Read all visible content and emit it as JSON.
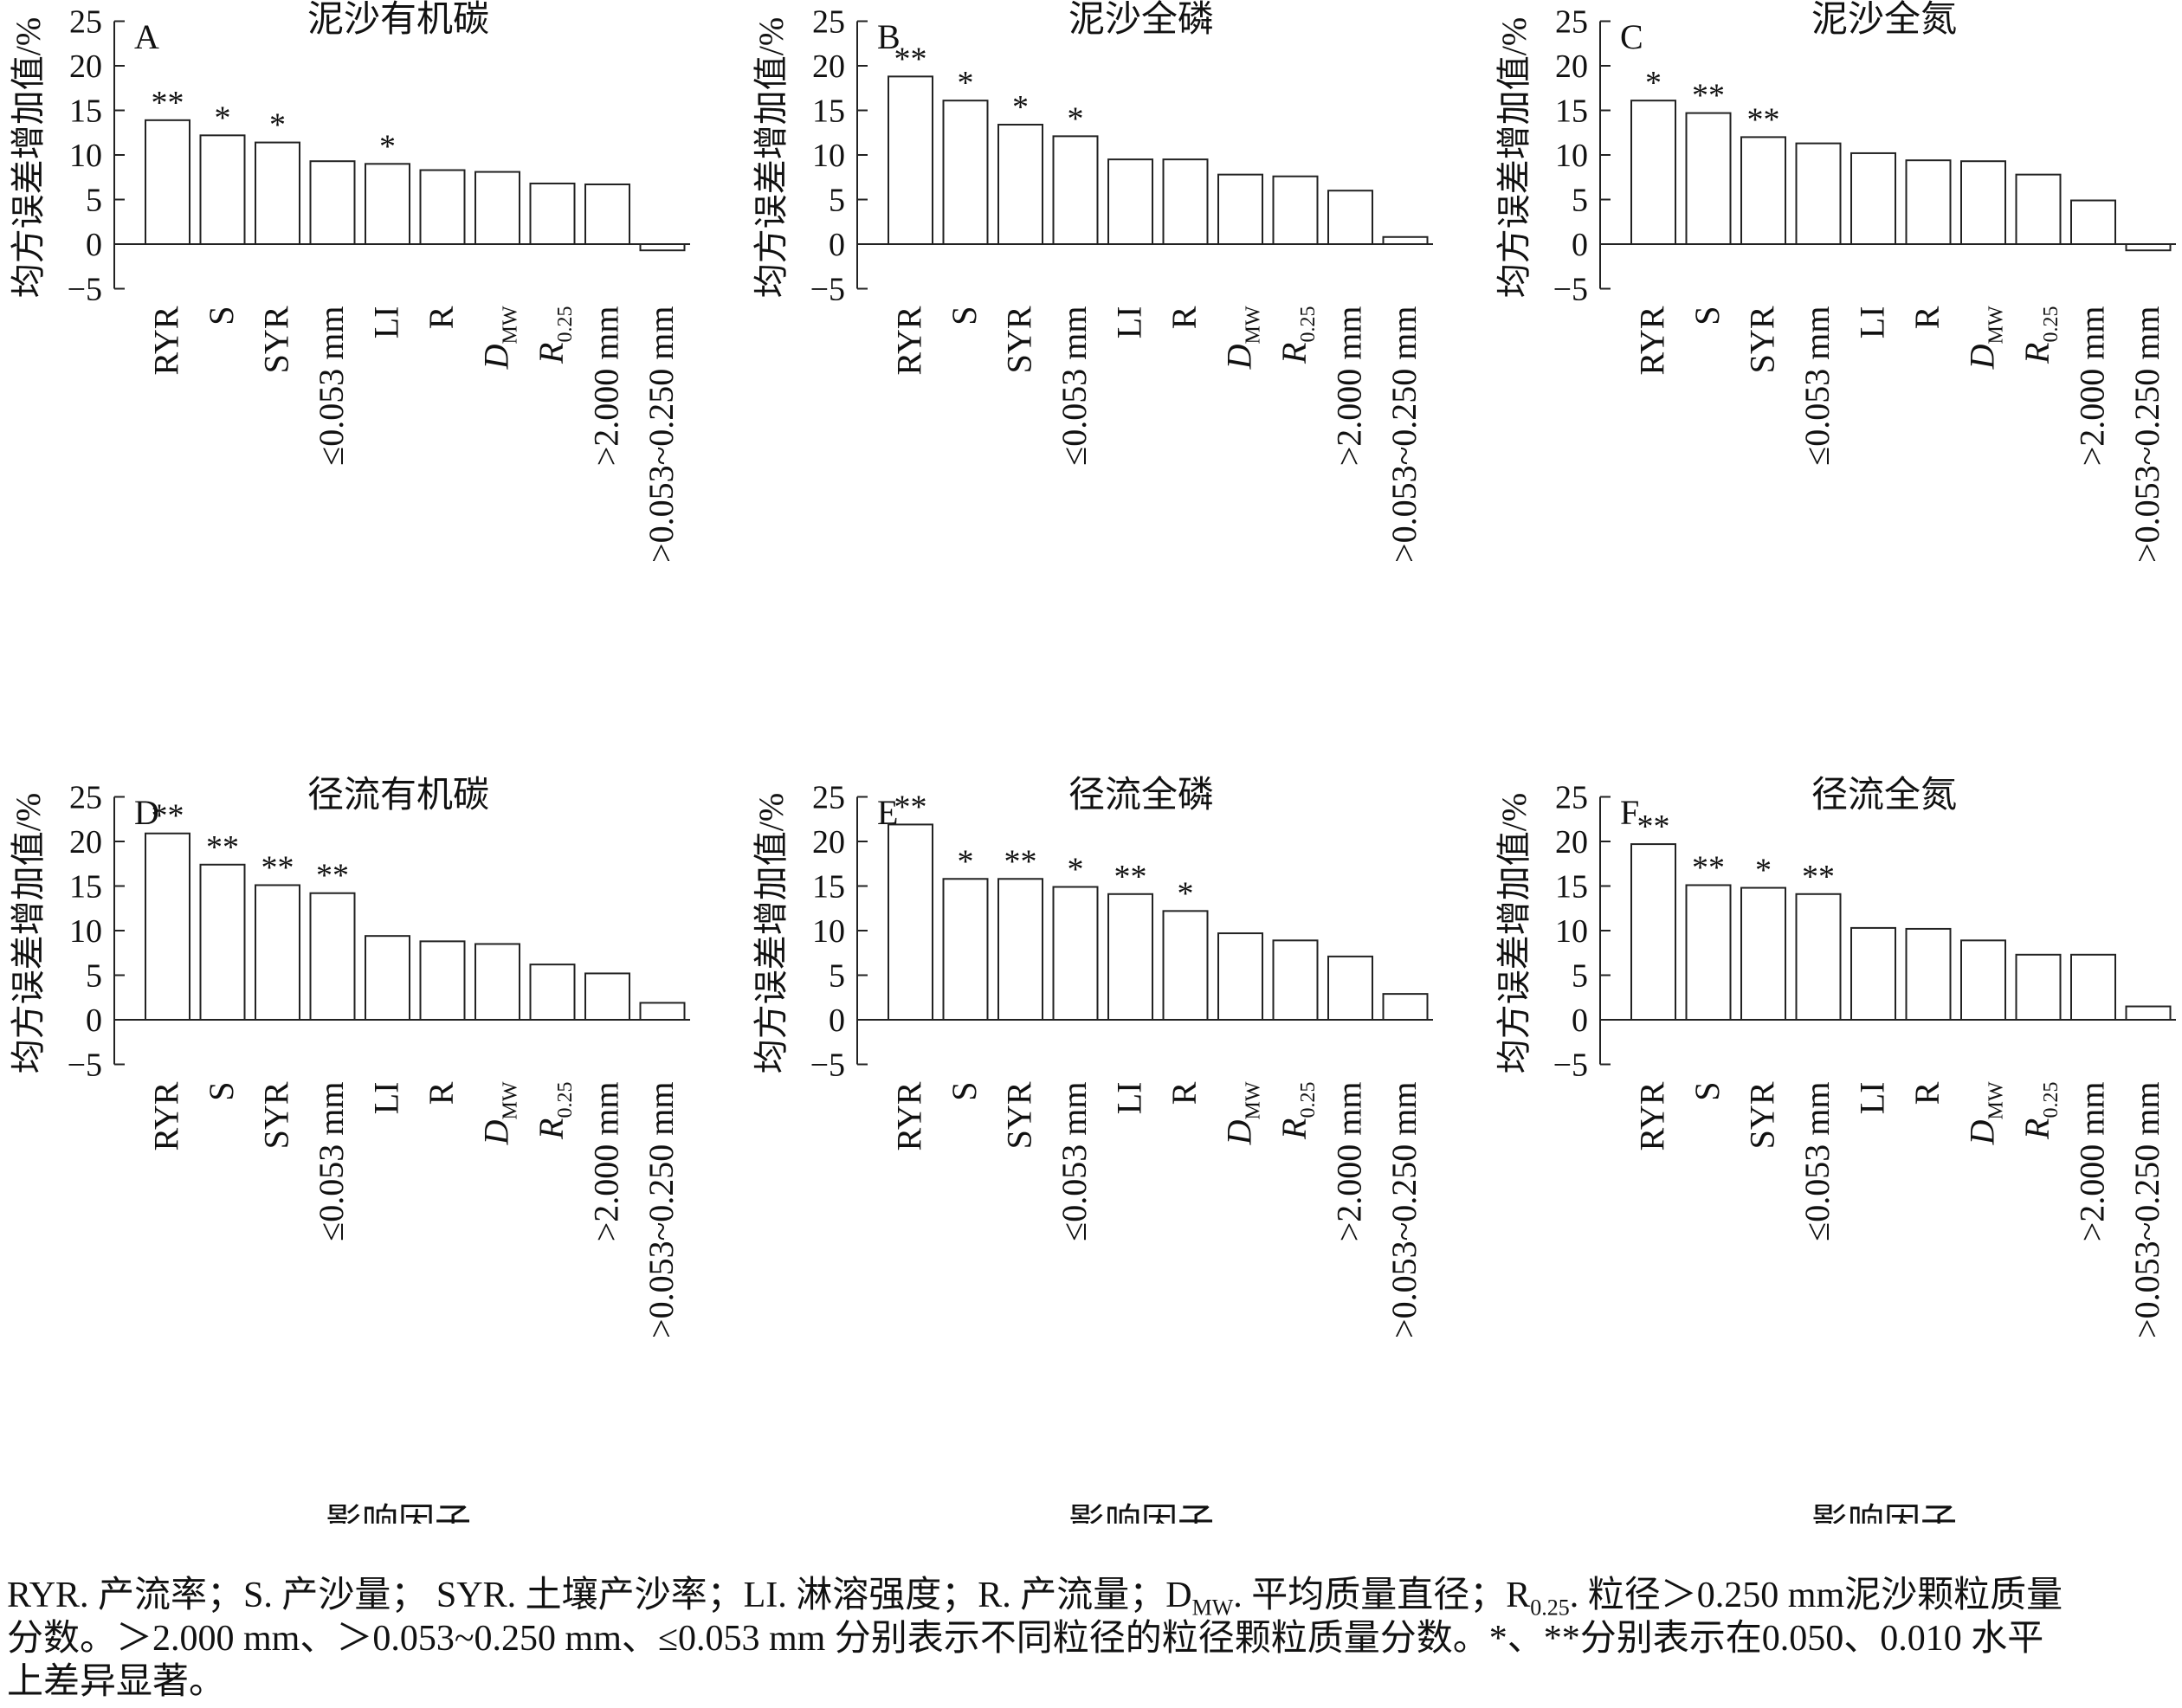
{
  "chart_data": [
    {
      "type": "bar",
      "panel_letter": "A",
      "title": "泥沙有机碳",
      "ylabel": "均方误差增加值/%",
      "xlabel": "",
      "ylim": [
        -5,
        25
      ],
      "yticks": [
        "−5",
        "0",
        "5",
        "10",
        "15",
        "20",
        "25"
      ],
      "categories": [
        "RYR",
        "S",
        "SYR",
        "≤0.053 mm",
        "LI",
        "R",
        "D_MW",
        "R_0.25",
        ">2.000 mm",
        ">0.053~0.250 mm"
      ],
      "values": [
        13.9,
        12.2,
        11.4,
        9.3,
        9.0,
        8.3,
        8.1,
        6.8,
        6.7,
        -0.7
      ],
      "significance": [
        "**",
        "*",
        "*",
        "",
        "*",
        "",
        "",
        "",
        "",
        ""
      ]
    },
    {
      "type": "bar",
      "panel_letter": "B",
      "title": "泥沙全磷",
      "ylabel": "均方误差增加值/%",
      "xlabel": "",
      "ylim": [
        -5,
        25
      ],
      "yticks": [
        "−5",
        "0",
        "5",
        "10",
        "15",
        "20",
        "25"
      ],
      "categories": [
        "RYR",
        "S",
        "SYR",
        "≤0.053 mm",
        "LI",
        "R",
        "D_MW",
        "R_0.25",
        ">2.000 mm",
        ">0.053~0.250 mm"
      ],
      "values": [
        18.8,
        16.1,
        13.4,
        12.1,
        9.5,
        9.5,
        7.8,
        7.6,
        6.0,
        0.8
      ],
      "significance": [
        "**",
        "*",
        "*",
        "*",
        "",
        "",
        "",
        "",
        "",
        ""
      ]
    },
    {
      "type": "bar",
      "panel_letter": "C",
      "title": "泥沙全氮",
      "ylabel": "均方误差增加值/%",
      "xlabel": "",
      "ylim": [
        -5,
        25
      ],
      "yticks": [
        "−5",
        "0",
        "5",
        "10",
        "15",
        "20",
        "25"
      ],
      "categories": [
        "RYR",
        "S",
        "SYR",
        "≤0.053 mm",
        "LI",
        "R",
        "D_MW",
        "R_0.25",
        ">2.000 mm",
        ">0.053~0.250 mm"
      ],
      "values": [
        16.1,
        14.7,
        12.0,
        11.3,
        10.2,
        9.4,
        9.3,
        7.8,
        4.9,
        -0.7
      ],
      "significance": [
        "*",
        "**",
        "**",
        "",
        "",
        "",
        "",
        "",
        "",
        ""
      ]
    },
    {
      "type": "bar",
      "panel_letter": "D",
      "title": "径流有机碳",
      "ylabel": "均方误差增加值/%",
      "xlabel": "影响因子",
      "ylim": [
        -5,
        25
      ],
      "yticks": [
        "−5",
        "0",
        "5",
        "10",
        "15",
        "20",
        "25"
      ],
      "categories": [
        "RYR",
        "S",
        "SYR",
        "≤0.053 mm",
        "LI",
        "R",
        "D_MW",
        "R_0.25",
        ">2.000 mm",
        ">0.053~0.250 mm"
      ],
      "values": [
        20.9,
        17.4,
        15.1,
        14.2,
        9.4,
        8.8,
        8.5,
        6.2,
        5.2,
        1.9
      ],
      "significance": [
        "**",
        "**",
        "**",
        "**",
        "",
        "",
        "",
        "",
        "",
        ""
      ]
    },
    {
      "type": "bar",
      "panel_letter": "E",
      "title": "径流全磷",
      "ylabel": "均方误差增加值/%",
      "xlabel": "影响因子",
      "ylim": [
        -5,
        25
      ],
      "yticks": [
        "−5",
        "0",
        "5",
        "10",
        "15",
        "20",
        "25"
      ],
      "categories": [
        "RYR",
        "S",
        "SYR",
        "≤0.053 mm",
        "LI",
        "R",
        "D_MW",
        "R_0.25",
        ">2.000 mm",
        ">0.053~0.250 mm"
      ],
      "values": [
        21.9,
        15.8,
        15.8,
        14.9,
        14.1,
        12.2,
        9.7,
        8.9,
        7.1,
        2.9
      ],
      "significance": [
        "**",
        "*",
        "**",
        "*",
        "**",
        "*",
        "",
        "",
        "",
        ""
      ]
    },
    {
      "type": "bar",
      "panel_letter": "F",
      "title": "径流全氮",
      "ylabel": "均方误差增加值/%",
      "xlabel": "影响因子",
      "ylim": [
        -5,
        25
      ],
      "yticks": [
        "−5",
        "0",
        "5",
        "10",
        "15",
        "20",
        "25"
      ],
      "categories": [
        "RYR",
        "S",
        "SYR",
        "≤0.053 mm",
        "LI",
        "R",
        "D_MW",
        "R_0.25",
        ">2.000 mm",
        ">0.053~0.250 mm"
      ],
      "values": [
        19.7,
        15.1,
        14.8,
        14.1,
        10.3,
        10.2,
        8.9,
        7.3,
        7.3,
        1.5
      ],
      "significance": [
        "**",
        "**",
        "*",
        "**",
        "",
        "",
        "",
        "",
        "",
        ""
      ]
    }
  ],
  "caption": {
    "line1": "RYR. 产流率；S. 产沙量； SYR. 土壤产沙率；LI. 淋溶强度；R. 产流量；D",
    "line1_sub1": "MW",
    "line1_mid": ". 平均质量直径；R",
    "line1_sub2": "0.25",
    "line1_end": ". 粒径＞0.250 mm泥沙颗粒质量",
    "line2": "分数。＞2.000 mm、＞0.053~0.250 mm、≤0.053 mm 分别表示不同粒径的粒径颗粒质量分数。*、**分别表示在0.050、0.010 水平",
    "line3": "上差异显著。"
  }
}
